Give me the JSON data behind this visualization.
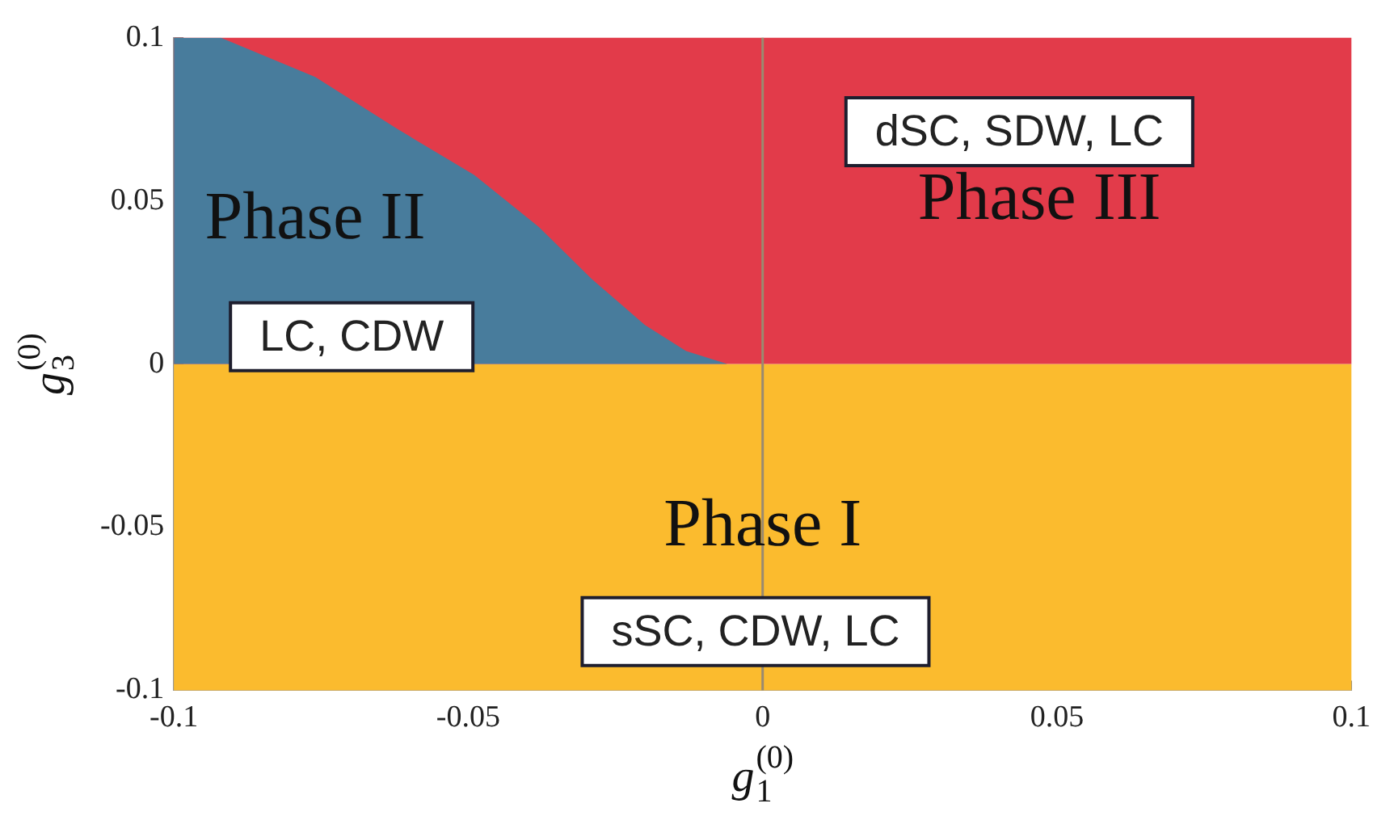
{
  "chart_data": {
    "type": "area",
    "xlabel": "g$_{1}$$^{(0)}$",
    "ylabel": "g$_{3}$$^{(0)}$",
    "xlim": [
      -0.1,
      0.1
    ],
    "ylim": [
      -0.1,
      0.1
    ],
    "xticks": [
      -0.1,
      -0.05,
      0,
      0.05,
      0.1
    ],
    "yticks": [
      -0.1,
      -0.05,
      0,
      0.05,
      0.1
    ],
    "grid": false,
    "legend": false,
    "marker": "none",
    "series": [
      {
        "name": "Phase II",
        "color": "#487c9c",
        "x": [
          -0.1,
          -0.092,
          -0.076,
          -0.062,
          -0.049,
          -0.038,
          -0.029,
          -0.02,
          -0.013,
          -0.006
        ],
        "values": [
          0.1,
          0.1,
          0.088,
          0.072,
          0.058,
          0.042,
          0.026,
          0.012,
          0.004,
          0
        ]
      }
    ],
    "bands": [
      {
        "axis": "y",
        "from": -0.1,
        "to": 0,
        "label": "Phase I",
        "color": "#fbbb2e"
      },
      {
        "axis": "y",
        "from": 0,
        "to": 0.1,
        "label": "Phase III",
        "color": "#e23b4a"
      }
    ],
    "ref_lines": [
      {
        "axis": "x",
        "value": 0,
        "color": "#9a8a70"
      }
    ],
    "annotations": [
      "dSC, SDW, LC",
      "LC, CDW",
      "sSC, CDW, LC"
    ]
  }
}
